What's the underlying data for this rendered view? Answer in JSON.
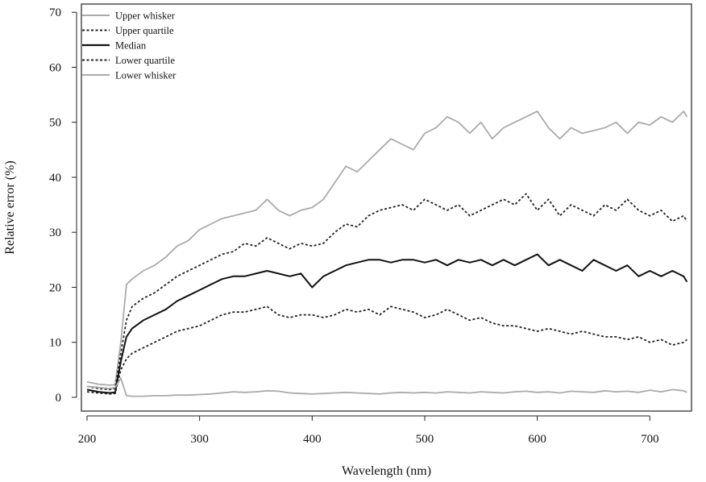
{
  "chart_data": {
    "type": "line",
    "xlabel": "Wavelength (nm)",
    "ylabel": "Relative error (%)",
    "xlim": [
      195,
      737
    ],
    "ylim": [
      -2.5,
      71.5
    ],
    "xticks": [
      200,
      300,
      400,
      500,
      600,
      700
    ],
    "yticks": [
      0,
      10,
      20,
      30,
      40,
      50,
      60,
      70
    ],
    "legend_position": "top-left",
    "grid": false,
    "x": [
      200,
      210,
      220,
      225,
      230,
      235,
      240,
      250,
      260,
      270,
      280,
      290,
      300,
      310,
      320,
      330,
      340,
      350,
      360,
      370,
      380,
      390,
      400,
      410,
      420,
      430,
      440,
      450,
      460,
      470,
      480,
      490,
      500,
      510,
      520,
      530,
      540,
      550,
      560,
      570,
      580,
      590,
      600,
      610,
      620,
      630,
      640,
      650,
      660,
      670,
      680,
      690,
      700,
      710,
      720,
      730,
      733
    ],
    "series": [
      {
        "name": "Upper whisker",
        "color": "#aaaaaa",
        "dash": "solid",
        "width": 1.8,
        "values": [
          2.8,
          2.4,
          2.2,
          2.3,
          10,
          20.5,
          21.5,
          23,
          24,
          25.5,
          27.5,
          28.5,
          30.5,
          31.5,
          32.5,
          33,
          33.5,
          34,
          36,
          34,
          33,
          34,
          34.5,
          36,
          39,
          42,
          41,
          43,
          45,
          47,
          46,
          45,
          48,
          49,
          51,
          50,
          48,
          50,
          47,
          49,
          50,
          51,
          52,
          49,
          47,
          49,
          48,
          48.5,
          49,
          50,
          48,
          50,
          49.5,
          51,
          50,
          52,
          51
        ]
      },
      {
        "name": "Upper quartile",
        "color": "#222222",
        "dash": "dotted",
        "width": 1.8,
        "values": [
          2.0,
          1.6,
          1.4,
          1.6,
          8,
          14,
          16.5,
          18,
          19,
          20.5,
          22,
          23,
          24,
          25,
          26,
          26.5,
          28,
          27.5,
          29,
          28,
          27,
          28,
          27.5,
          28,
          30,
          31.5,
          31,
          33,
          34,
          34.5,
          35,
          34,
          36,
          35,
          34,
          35,
          33,
          34,
          35,
          36,
          35,
          37,
          34,
          36,
          33,
          35,
          34,
          33,
          35,
          34,
          36,
          34,
          33,
          34,
          32,
          33,
          32
        ]
      },
      {
        "name": "Median",
        "color": "#111111",
        "dash": "solid",
        "width": 2.0,
        "values": [
          1.4,
          1.0,
          0.8,
          0.9,
          6.5,
          11,
          12.5,
          14,
          15,
          16,
          17.5,
          18.5,
          19.5,
          20.5,
          21.5,
          22,
          22,
          22.5,
          23,
          22.5,
          22,
          22.5,
          20,
          22,
          23,
          24,
          24.5,
          25,
          25,
          24.5,
          25,
          25,
          24.5,
          25,
          24,
          25,
          24.5,
          25,
          24,
          25,
          24,
          25,
          26,
          24,
          25,
          24,
          23,
          25,
          24,
          23,
          24,
          22,
          23,
          22,
          23,
          22,
          21
        ]
      },
      {
        "name": "Lower quartile",
        "color": "#222222",
        "dash": "dotted",
        "width": 1.8,
        "values": [
          1.0,
          0.8,
          0.6,
          0.7,
          5,
          7,
          8,
          9,
          10,
          11,
          12,
          12.5,
          13,
          14,
          15,
          15.5,
          15.5,
          16,
          16.5,
          15,
          14.5,
          15,
          15,
          14.5,
          15,
          16,
          15.5,
          16,
          15,
          16.5,
          16,
          15.5,
          14.5,
          15,
          16,
          15,
          14,
          14.5,
          13.5,
          13,
          13,
          12.5,
          12,
          12.5,
          12,
          11.5,
          12,
          11.5,
          11,
          11,
          10.5,
          11,
          10,
          10.5,
          9.5,
          10,
          10.5
        ]
      },
      {
        "name": "Lower whisker",
        "color": "#aaaaaa",
        "dash": "solid",
        "width": 1.8,
        "values": [
          2.0,
          1.8,
          1.6,
          1.8,
          3.5,
          0.3,
          0.2,
          0.2,
          0.3,
          0.3,
          0.4,
          0.4,
          0.5,
          0.6,
          0.8,
          1.0,
          0.9,
          1.0,
          1.2,
          1.1,
          0.8,
          0.7,
          0.6,
          0.7,
          0.8,
          0.9,
          0.8,
          0.7,
          0.6,
          0.8,
          0.9,
          0.8,
          0.9,
          0.8,
          1.0,
          0.9,
          0.8,
          1.0,
          0.9,
          0.8,
          1.0,
          1.1,
          0.9,
          1.0,
          0.8,
          1.1,
          1.0,
          0.9,
          1.2,
          1.0,
          1.1,
          0.9,
          1.3,
          1.0,
          1.4,
          1.2,
          0.9
        ]
      }
    ]
  }
}
